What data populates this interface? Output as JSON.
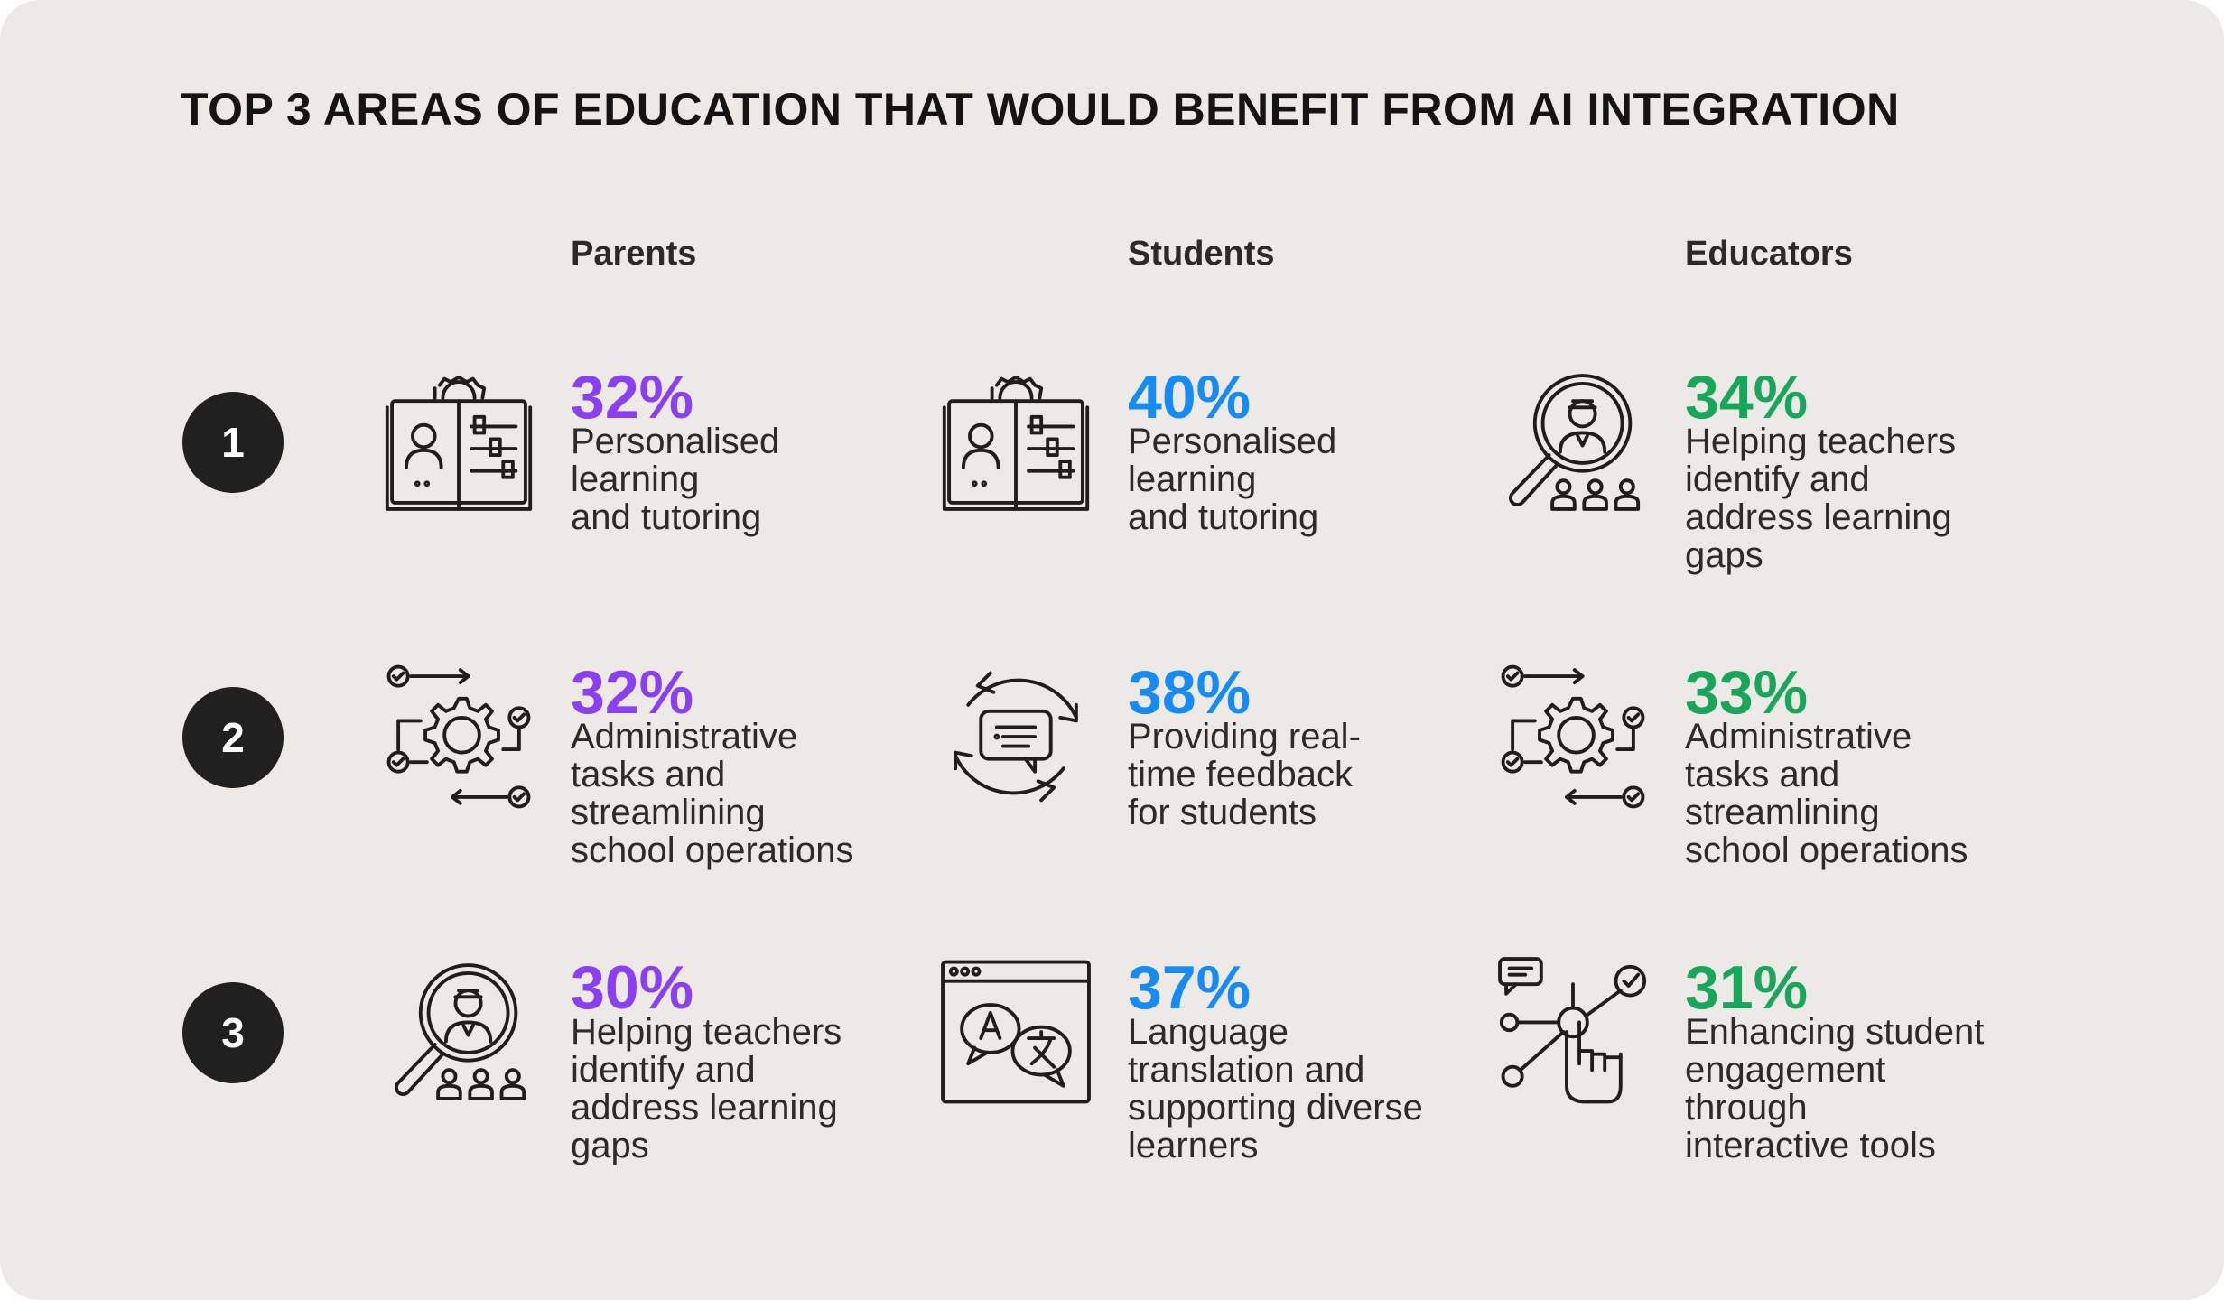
{
  "title": "TOP 3 AREAS OF EDUCATION THAT WOULD BENEFIT FROM AI INTEGRATION",
  "colors": {
    "parents": "#8a3ff0",
    "students": "#168bf4",
    "educators": "#18a65a"
  },
  "columns": [
    {
      "name": "Parents"
    },
    {
      "name": "Students"
    },
    {
      "name": "Educators"
    }
  ],
  "ranks": [
    "1",
    "2",
    "3"
  ],
  "cells": [
    [
      {
        "pct": "32%",
        "text": "Personalised\nlearning\nand tutoring",
        "icon": "book-profile-gear-icon"
      },
      {
        "pct": "40%",
        "text": "Personalised\nlearning\nand tutoring",
        "icon": "book-profile-gear-icon"
      },
      {
        "pct": "34%",
        "text": "Helping teachers\nidentify and\naddress learning\ngaps",
        "icon": "magnifier-people-icon"
      }
    ],
    [
      {
        "pct": "32%",
        "text": "Administrative\ntasks and\nstreamlining\nschool operations",
        "icon": "gear-workflow-icon"
      },
      {
        "pct": "38%",
        "text": "Providing real-\ntime feedback\nfor students",
        "icon": "refresh-chat-icon"
      },
      {
        "pct": "33%",
        "text": "Administrative\ntasks and\nstreamlining\nschool operations",
        "icon": "gear-workflow-icon"
      }
    ],
    [
      {
        "pct": "30%",
        "text": "Helping teachers\nidentify and\naddress learning\ngaps",
        "icon": "magnifier-people-icon"
      },
      {
        "pct": "37%",
        "text": "Language\ntranslation and\nsupporting diverse\nlearners",
        "icon": "translation-window-icon"
      },
      {
        "pct": "31%",
        "text": "Enhancing student\nengagement\nthrough\ninteractive tools",
        "icon": "hand-network-icon"
      }
    ]
  ]
}
